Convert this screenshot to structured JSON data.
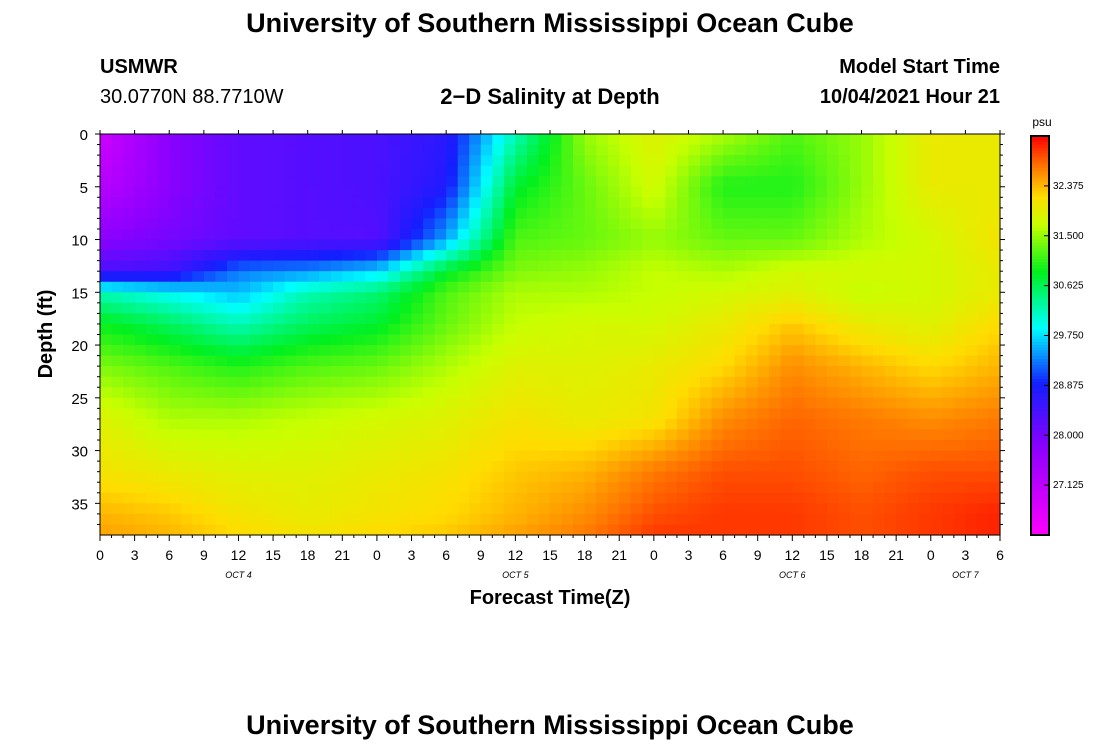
{
  "header": {
    "title": "University of Southern Mississippi Ocean Cube",
    "station": "USMWR",
    "coords": "30.0770N  88.7710W",
    "plot_title": "2−D Salinity at Depth",
    "model_label": "Model Start Time",
    "model_time": "10/04/2021 Hour 21"
  },
  "footer": {
    "title": "University of Southern Mississippi Ocean Cube"
  },
  "chart_data": {
    "type": "heatmap",
    "title": "2-D Salinity at Depth",
    "xlabel": "Forecast Time(Z)",
    "ylabel": "Depth (ft)",
    "x_ticks": [
      "0",
      "3",
      "6",
      "9",
      "12",
      "15",
      "18",
      "21",
      "0",
      "3",
      "6",
      "9",
      "12",
      "15",
      "18",
      "21",
      "0",
      "3",
      "6",
      "9",
      "12",
      "15",
      "18",
      "21",
      "0",
      "3",
      "6"
    ],
    "x_range_hours": [
      0,
      78
    ],
    "date_labels": [
      {
        "hour": 12,
        "label": "OCT 4"
      },
      {
        "hour": 36,
        "label": "OCT 5"
      },
      {
        "hour": 60,
        "label": "OCT 6"
      },
      {
        "hour": 75,
        "label": "OCT 7"
      }
    ],
    "y_ticks": [
      0,
      5,
      10,
      15,
      20,
      25,
      30,
      35
    ],
    "ylim": [
      0,
      38
    ],
    "colorbar": {
      "unit": "psu",
      "range": [
        26.25,
        33.25
      ],
      "tick_values": [
        32.375,
        31.5,
        30.625,
        29.75,
        28.875,
        28.0,
        27.125
      ],
      "tick_labels": [
        "32.375",
        "31.500",
        "30.625",
        "29.750",
        "28.875",
        "28.000",
        "27.125"
      ]
    },
    "salinity_grid": {
      "hours": [
        0,
        6,
        12,
        18,
        24,
        30,
        36,
        42,
        48,
        54,
        60,
        66,
        72,
        78
      ],
      "depths": [
        0,
        5,
        10,
        13,
        15,
        18,
        22,
        27,
        32,
        36,
        38
      ],
      "values_psu": [
        [
          26.9,
          27.8,
          28.2,
          28.3,
          28.4,
          28.7,
          30.2,
          31.5,
          31.9,
          31.6,
          31.2,
          31.5,
          32.0,
          32.0
        ],
        [
          27.2,
          27.8,
          28.2,
          28.3,
          28.4,
          28.8,
          30.8,
          31.3,
          31.8,
          31.0,
          31.0,
          31.5,
          32.0,
          32.0
        ],
        [
          27.8,
          28.0,
          28.2,
          28.3,
          28.3,
          29.5,
          31.2,
          31.3,
          31.5,
          31.3,
          31.3,
          31.6,
          31.8,
          32.1
        ],
        [
          28.4,
          28.5,
          29.3,
          29.4,
          29.7,
          30.8,
          31.4,
          31.5,
          31.7,
          31.6,
          31.8,
          31.8,
          31.8,
          32.0
        ],
        [
          30.2,
          29.9,
          29.6,
          30.2,
          30.5,
          31.2,
          31.6,
          31.6,
          31.7,
          31.8,
          31.9,
          31.7,
          31.8,
          32.0
        ],
        [
          30.9,
          30.6,
          30.2,
          30.6,
          30.8,
          31.3,
          31.7,
          31.8,
          31.8,
          32.0,
          32.3,
          32.0,
          31.9,
          32.2
        ],
        [
          31.4,
          31.2,
          31.0,
          31.2,
          31.3,
          31.6,
          31.9,
          31.9,
          32.0,
          32.2,
          32.6,
          32.4,
          32.2,
          32.4
        ],
        [
          31.9,
          31.6,
          31.6,
          31.7,
          31.8,
          31.9,
          32.1,
          32.0,
          32.1,
          32.6,
          32.8,
          32.7,
          32.6,
          32.7
        ],
        [
          32.1,
          32.0,
          31.9,
          31.9,
          32.0,
          32.1,
          32.3,
          32.4,
          32.7,
          32.9,
          32.9,
          32.8,
          32.9,
          32.9
        ],
        [
          32.4,
          32.3,
          32.1,
          32.0,
          32.1,
          32.2,
          32.4,
          32.6,
          32.9,
          33.0,
          33.0,
          32.9,
          33.0,
          33.1
        ],
        [
          32.5,
          32.4,
          32.2,
          32.1,
          32.2,
          32.3,
          32.5,
          32.7,
          33.0,
          33.0,
          33.0,
          32.9,
          33.0,
          33.1
        ]
      ]
    }
  }
}
